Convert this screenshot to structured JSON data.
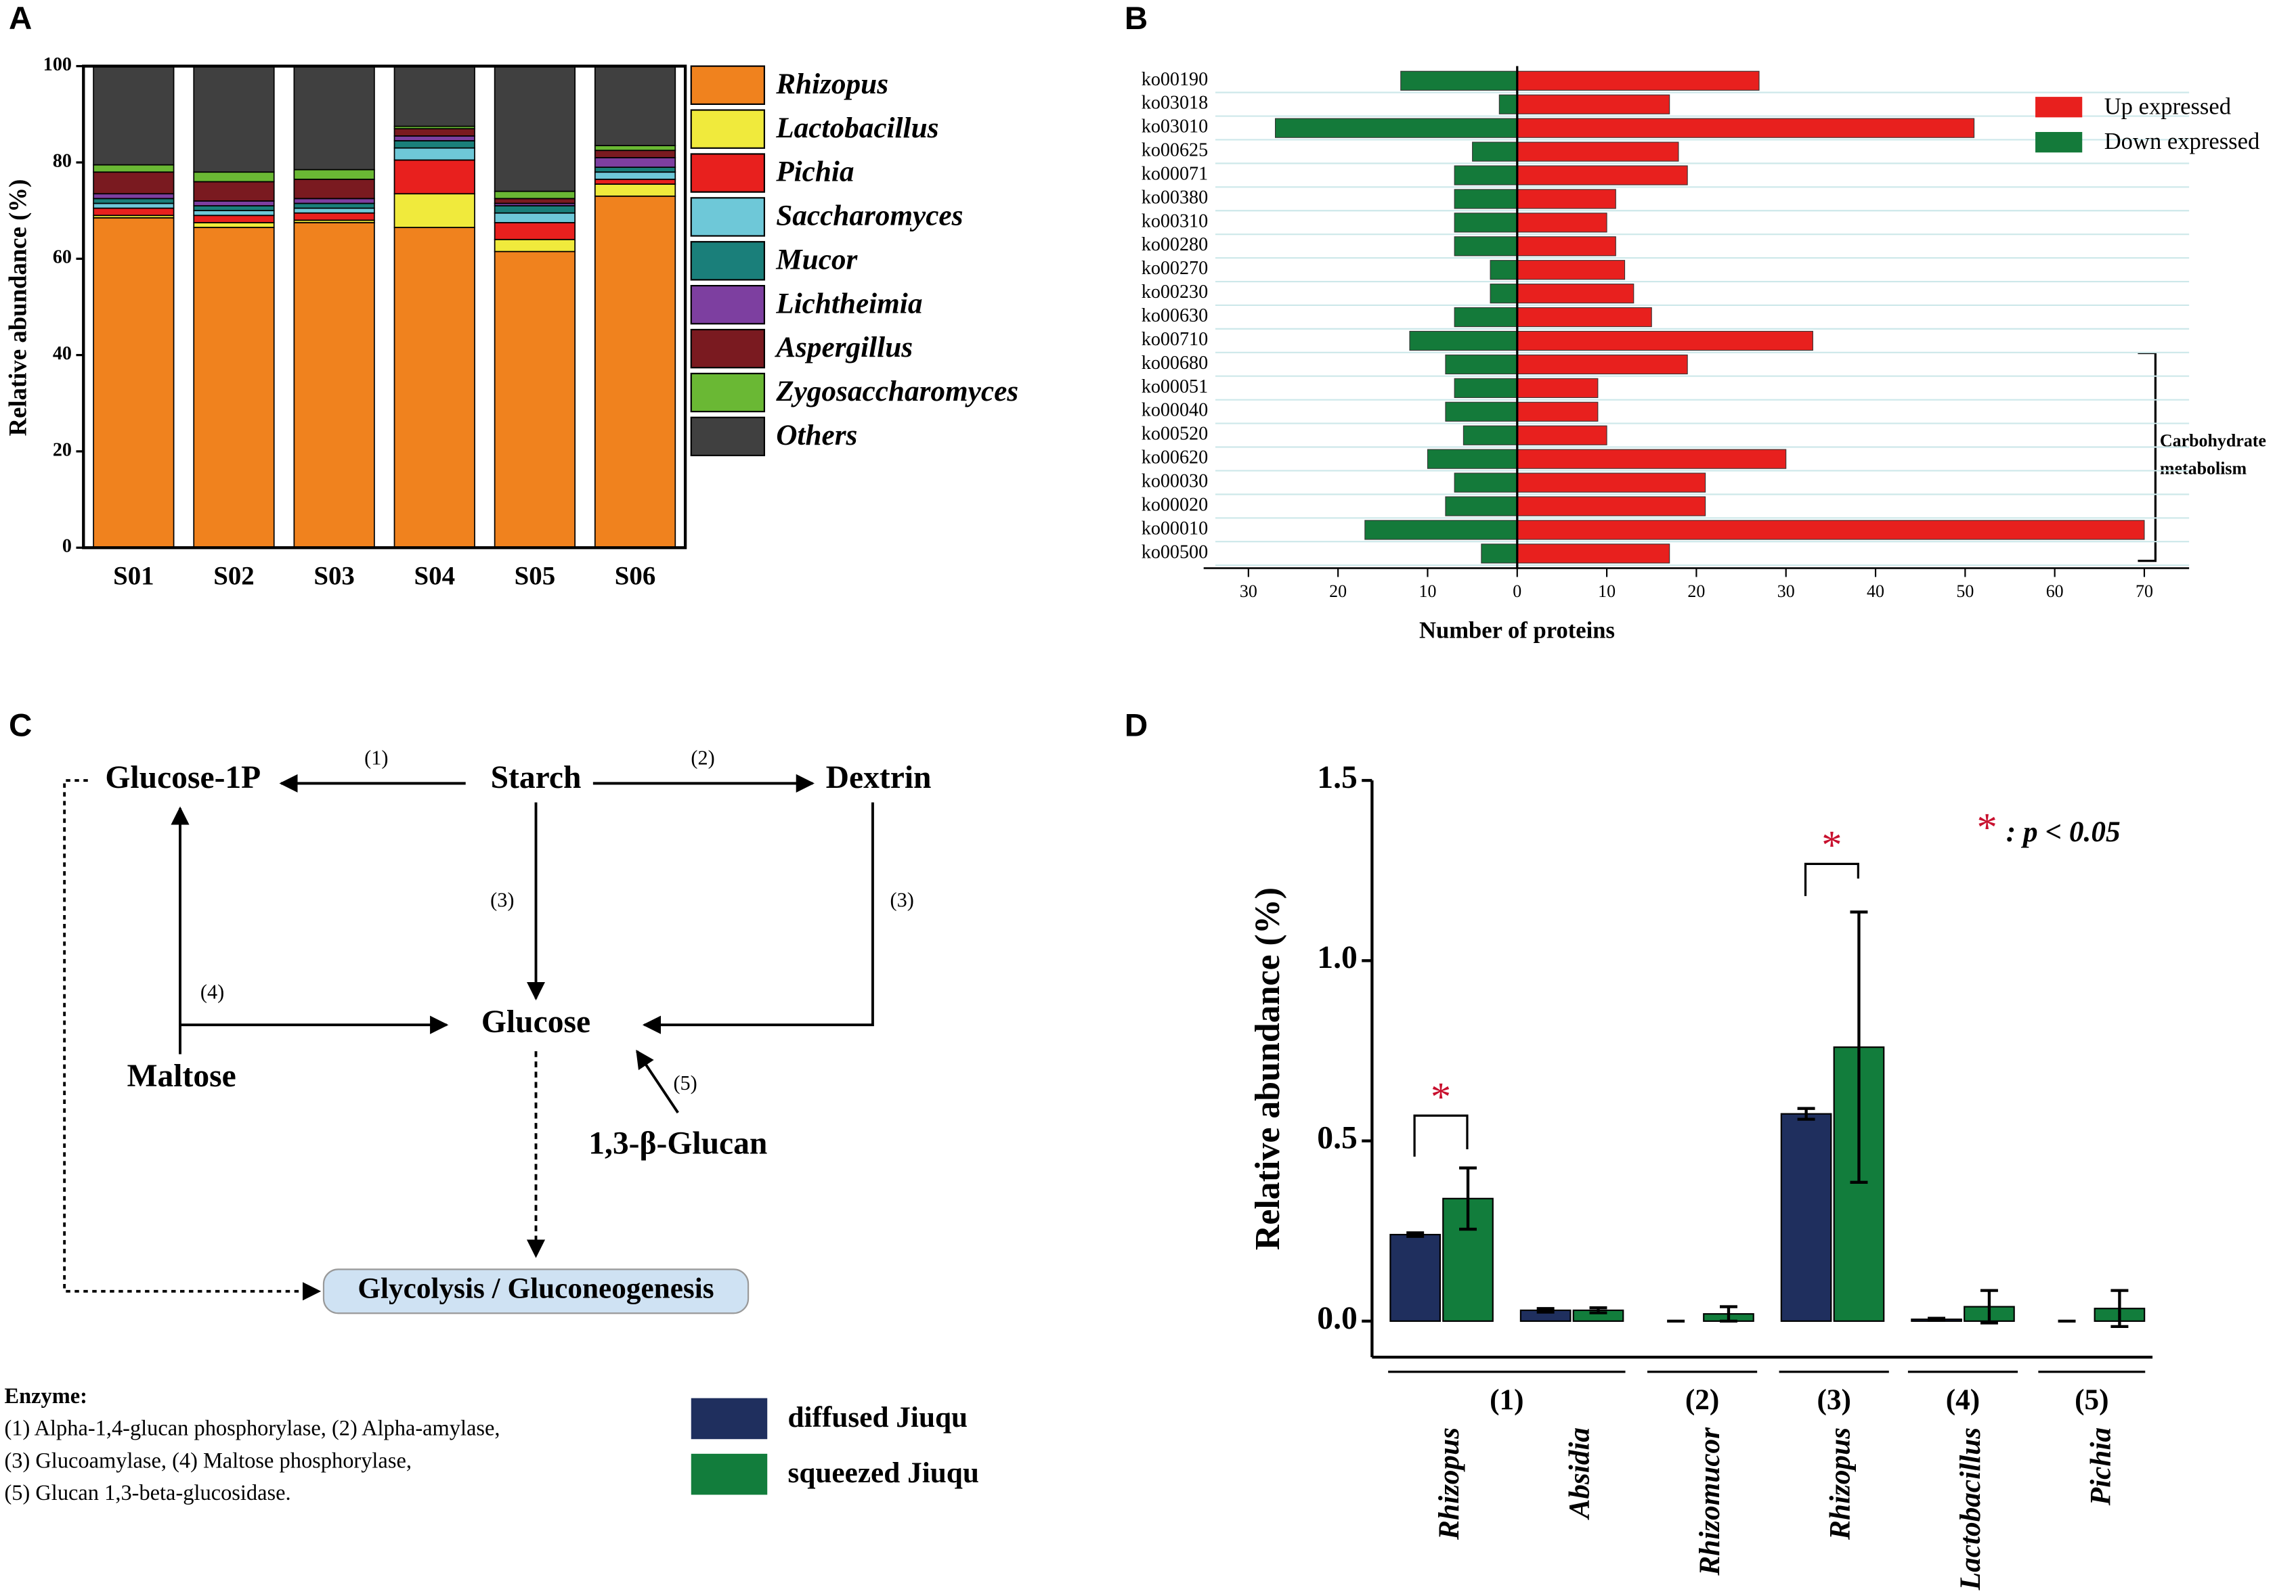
{
  "panel_labels": [
    "A",
    "B",
    "C",
    "D"
  ],
  "chart_data": [
    {
      "type": "stacked_bar",
      "ylabel": "Relative abundance (%)",
      "categories": [
        "S01",
        "S02",
        "S03",
        "S04",
        "S05",
        "S06"
      ],
      "ylim": [
        0,
        100
      ],
      "yticks": [
        0,
        20,
        40,
        60,
        80,
        100
      ],
      "series": [
        {
          "name": "Rhizopus",
          "color": "#f0821e",
          "values": [
            68.5,
            66.5,
            67.5,
            66.5,
            61.5,
            73
          ]
        },
        {
          "name": "Lactobacillus",
          "color": "#f0ea3c",
          "values": [
            0.5,
            1,
            0.5,
            7,
            2.5,
            2.5
          ]
        },
        {
          "name": "Pichia",
          "color": "#e8201e",
          "values": [
            1.5,
            1.5,
            1.5,
            7,
            3.5,
            1
          ]
        },
        {
          "name": "Saccharomyces",
          "color": "#6ec8d8",
          "values": [
            1,
            1,
            1,
            2.5,
            2,
            1.5
          ]
        },
        {
          "name": "Mucor",
          "color": "#1a7f7a",
          "values": [
            1,
            1,
            1,
            1.5,
            1.5,
            1
          ]
        },
        {
          "name": "Lichtheimia",
          "color": "#7d3fa0",
          "values": [
            1,
            1,
            1,
            1,
            0.5,
            2
          ]
        },
        {
          "name": "Aspergillus",
          "color": "#7a1a20",
          "values": [
            4.5,
            4,
            4,
            1.5,
            1,
            1.5
          ]
        },
        {
          "name": "Zygosaccharomyces",
          "color": "#6ab834",
          "values": [
            1.5,
            2,
            2,
            0.5,
            1.5,
            1
          ]
        },
        {
          "name": "Others",
          "color": "#404040",
          "values": [
            20.5,
            22,
            21.5,
            12.5,
            26,
            16.5
          ]
        }
      ]
    },
    {
      "type": "diverging_bar",
      "xlabel": "Number of proteins",
      "categories": [
        "ko00190",
        "ko03018",
        "ko03010",
        "ko00625",
        "ko00071",
        "ko00380",
        "ko00310",
        "ko00280",
        "ko00270",
        "ko00230",
        "ko00630",
        "ko00710",
        "ko00680",
        "ko00051",
        "ko00040",
        "ko00520",
        "ko00620",
        "ko00030",
        "ko00020",
        "ko00010",
        "ko00500"
      ],
      "xlim": [
        -35,
        75
      ],
      "xticks": [
        {
          "value": -30,
          "label": "30"
        },
        {
          "value": -20,
          "label": "20"
        },
        {
          "value": -10,
          "label": "10"
        },
        0,
        10,
        20,
        30,
        40,
        50,
        60,
        70
      ],
      "series": [
        {
          "name": "Up expressed",
          "color": "#e8201e",
          "values": [
            27,
            17,
            51,
            18,
            19,
            11,
            10,
            11,
            12,
            13,
            15,
            33,
            19,
            9,
            9,
            10,
            30,
            21,
            21,
            70,
            17
          ]
        },
        {
          "name": "Down expressed",
          "color": "#147a3a",
          "values": [
            -13,
            -2,
            -27,
            -5,
            -7,
            -7,
            -7,
            -7,
            -3,
            -3,
            -7,
            -12,
            -8,
            -7,
            -8,
            -6,
            -10,
            -7,
            -8,
            -17,
            -4
          ]
        }
      ],
      "annotation": [
        "Carbohydrate",
        "metabolism"
      ]
    },
    {
      "type": "grouped_bar",
      "ylabel": "Relative abundance (%)",
      "categories": [
        "Rhizopus",
        "Absidia",
        "Rhizomucor",
        "Rhizopus",
        "Lactobacillus",
        "Pichia"
      ],
      "group_labels": [
        "(1)",
        "(2)",
        "(3)",
        "(4)",
        "(5)"
      ],
      "ylim": [
        -0.1,
        1.5
      ],
      "yticks": [
        {
          "value": 0,
          "label": "0.0"
        },
        0.5,
        {
          "value": 1,
          "label": "1.0"
        },
        1.5
      ],
      "series": [
        {
          "name": "diffused Jiuqu",
          "color": "#1f2f5e",
          "values": [
            0.24,
            0.03,
            0,
            0.575,
            0.005,
            0
          ],
          "errors": [
            0.005,
            0.005,
            0,
            0.015,
            0.003,
            0
          ]
        },
        {
          "name": "squeezed Jiuqu",
          "color": "#127d3c",
          "values": [
            0.34,
            0.03,
            0.02,
            0.76,
            0.04,
            0.035
          ],
          "errors": [
            0.085,
            0.007,
            0.02,
            0.375,
            0.045,
            0.05
          ]
        }
      ],
      "significance_marker": "*",
      "significance_note": ": p < 0.05"
    }
  ],
  "diagram": {
    "nodes": [
      "Glucose-1P",
      "Starch",
      "Dextrin",
      "Glucose",
      "Maltose",
      "1,3-β-Glucan",
      "Glycolysis / Gluconeogenesis"
    ],
    "steps": [
      "(1)",
      "(2)",
      "(3)",
      "(3)",
      "(4)",
      "(5)"
    ],
    "enzyme_title": "Enzyme:",
    "enzymes": [
      "(1) Alpha-1,4-glucan phosphorylase, (2) Alpha-amylase,",
      "(3) Glucoamylase, (4) Maltose phosphorylase,",
      "(5) Glucan 1,3-beta-glucosidase."
    ]
  }
}
